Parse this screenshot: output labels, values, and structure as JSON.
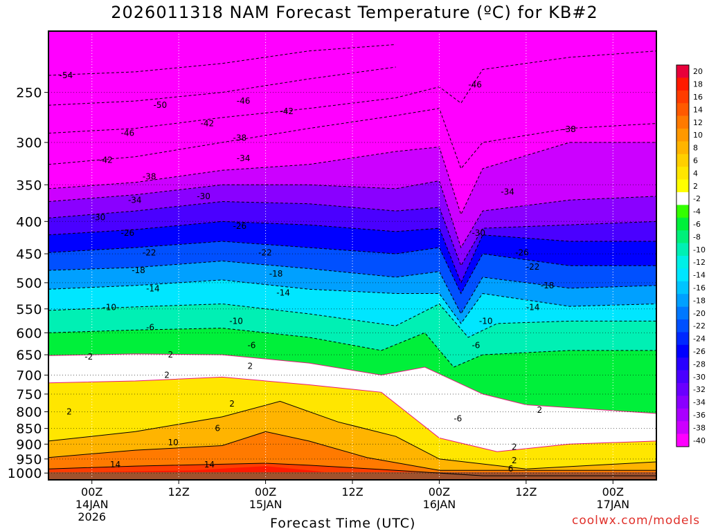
{
  "title": "2026011318 NAM Forecast Temperature (ºC) for KB#2",
  "watermark": "coolwx.com/models",
  "accent_color": "#e0302a",
  "chart_data": {
    "type": "heatmap",
    "title": "2026011318 NAM Forecast Temperature (ºC) for KB#2",
    "xlabel": "Forecast Time (UTC)",
    "ylabel": "",
    "grid": true,
    "x_unit": "hours since 2026-01-13 18Z",
    "xlim": [
      0,
      84
    ],
    "y_scale": "log-pressure",
    "ylim": [
      1025,
      200
    ],
    "x_ticks": [
      {
        "x": 6,
        "lines": [
          "00Z",
          "14JAN",
          "2026"
        ]
      },
      {
        "x": 18,
        "lines": [
          "12Z"
        ]
      },
      {
        "x": 30,
        "lines": [
          "00Z",
          "15JAN"
        ]
      },
      {
        "x": 42,
        "lines": [
          "12Z"
        ]
      },
      {
        "x": 54,
        "lines": [
          "00Z",
          "16JAN"
        ]
      },
      {
        "x": 66,
        "lines": [
          "12Z"
        ]
      },
      {
        "x": 78,
        "lines": [
          "00Z",
          "17JAN"
        ]
      }
    ],
    "y_ticks": [
      {
        "p": 250,
        "label": "250"
      },
      {
        "p": 300,
        "label": "300"
      },
      {
        "p": 350,
        "label": "350"
      },
      {
        "p": 400,
        "label": "400"
      },
      {
        "p": 450,
        "label": "450"
      },
      {
        "p": 500,
        "label": "500"
      },
      {
        "p": 550,
        "label": "550"
      },
      {
        "p": 600,
        "label": "600"
      },
      {
        "p": 650,
        "label": "650"
      },
      {
        "p": 700,
        "label": "700"
      },
      {
        "p": 750,
        "label": "750"
      },
      {
        "p": 800,
        "label": "800"
      },
      {
        "p": 850,
        "label": "850"
      },
      {
        "p": 900,
        "label": "900"
      },
      {
        "p": 950,
        "label": "950"
      },
      {
        "p": 1000,
        "label": "1000"
      }
    ],
    "colorbar": {
      "bins": [
        {
          "label": "20",
          "color": "#e8003a"
        },
        {
          "label": "18",
          "color": "#ff1a00"
        },
        {
          "label": "16",
          "color": "#ff3c00"
        },
        {
          "label": "14",
          "color": "#ff5a00"
        },
        {
          "label": "12",
          "color": "#ff7a00"
        },
        {
          "label": "10",
          "color": "#ff9800"
        },
        {
          "label": "8",
          "color": "#ffb400"
        },
        {
          "label": "6",
          "color": "#ffcf00"
        },
        {
          "label": "4",
          "color": "#ffe600"
        },
        {
          "label": "2",
          "color": "#ffff00"
        },
        {
          "label": "-2",
          "color": "#ffffff"
        },
        {
          "label": "-4",
          "color": "#33ff00"
        },
        {
          "label": "-6",
          "color": "#00f03a"
        },
        {
          "label": "-8",
          "color": "#00f07a"
        },
        {
          "label": "-10",
          "color": "#00f0b4"
        },
        {
          "label": "-12",
          "color": "#00f0e6"
        },
        {
          "label": "-14",
          "color": "#00e6ff"
        },
        {
          "label": "-16",
          "color": "#00c4ff"
        },
        {
          "label": "-18",
          "color": "#00a0ff"
        },
        {
          "label": "-20",
          "color": "#0078ff"
        },
        {
          "label": "-22",
          "color": "#0050ff"
        },
        {
          "label": "-24",
          "color": "#0028ff"
        },
        {
          "label": "-26",
          "color": "#0000ff"
        },
        {
          "label": "-28",
          "color": "#2800ff"
        },
        {
          "label": "-30",
          "color": "#4a00ff"
        },
        {
          "label": "-32",
          "color": "#6a00ff"
        },
        {
          "label": "-34",
          "color": "#8a00ff"
        },
        {
          "label": "-36",
          "color": "#aa00ff"
        },
        {
          "label": "-38",
          "color": "#cc00ff"
        },
        {
          "label": "-40",
          "color": "#ff00ff"
        }
      ],
      "ground_color": "#a0522d"
    },
    "series": [
      {
        "value": 14,
        "points": [
          [
            0,
            985
          ],
          [
            12,
            975
          ],
          [
            30,
            965
          ],
          [
            36,
            972
          ],
          [
            48,
            990
          ],
          [
            60,
            1010
          ],
          [
            84,
            1010
          ]
        ]
      },
      {
        "value": 10,
        "points": [
          [
            0,
            945
          ],
          [
            12,
            920
          ],
          [
            24,
            905
          ],
          [
            30,
            860
          ],
          [
            36,
            890
          ],
          [
            44,
            945
          ],
          [
            54,
            990
          ],
          [
            84,
            990
          ]
        ]
      },
      {
        "value": 6,
        "points": [
          [
            0,
            890
          ],
          [
            12,
            860
          ],
          [
            24,
            815
          ],
          [
            32,
            770
          ],
          [
            40,
            830
          ],
          [
            48,
            875
          ],
          [
            54,
            950
          ],
          [
            66,
            985
          ],
          [
            84,
            960
          ]
        ]
      },
      {
        "value": 2,
        "points": [
          [
            0,
            720
          ],
          [
            12,
            715
          ],
          [
            24,
            705
          ],
          [
            36,
            725
          ],
          [
            46,
            745
          ],
          [
            54,
            880
          ],
          [
            62,
            925
          ],
          [
            72,
            900
          ],
          [
            84,
            890
          ]
        ]
      },
      {
        "value": -2,
        "points": [
          [
            0,
            652
          ],
          [
            12,
            648
          ],
          [
            24,
            650
          ],
          [
            36,
            670
          ],
          [
            46,
            700
          ],
          [
            52,
            680
          ],
          [
            60,
            750
          ],
          [
            66,
            780
          ],
          [
            84,
            805
          ]
        ]
      },
      {
        "value": -6,
        "points": [
          [
            0,
            600
          ],
          [
            12,
            594
          ],
          [
            24,
            590
          ],
          [
            36,
            610
          ],
          [
            46,
            640
          ],
          [
            52,
            600
          ],
          [
            56,
            680
          ],
          [
            60,
            650
          ],
          [
            72,
            640
          ],
          [
            84,
            640
          ]
        ]
      },
      {
        "value": -10,
        "points": [
          [
            0,
            553
          ],
          [
            12,
            546
          ],
          [
            24,
            540
          ],
          [
            36,
            560
          ],
          [
            48,
            585
          ],
          [
            54,
            540
          ],
          [
            58,
            610
          ],
          [
            62,
            580
          ],
          [
            72,
            575
          ],
          [
            84,
            575
          ]
        ]
      },
      {
        "value": -14,
        "points": [
          [
            0,
            512
          ],
          [
            12,
            505
          ],
          [
            24,
            495
          ],
          [
            36,
            512
          ],
          [
            48,
            520
          ],
          [
            54,
            520
          ],
          [
            57,
            580
          ],
          [
            60,
            520
          ],
          [
            72,
            545
          ],
          [
            84,
            540
          ]
        ]
      },
      {
        "value": -18,
        "points": [
          [
            0,
            478
          ],
          [
            12,
            473
          ],
          [
            24,
            462
          ],
          [
            36,
            475
          ],
          [
            48,
            490
          ],
          [
            54,
            480
          ],
          [
            57,
            560
          ],
          [
            60,
            490
          ],
          [
            72,
            510
          ],
          [
            84,
            505
          ]
        ]
      },
      {
        "value": -22,
        "points": [
          [
            0,
            448
          ],
          [
            12,
            440
          ],
          [
            24,
            430
          ],
          [
            36,
            440
          ],
          [
            48,
            450
          ],
          [
            54,
            440
          ],
          [
            57,
            520
          ],
          [
            60,
            450
          ],
          [
            72,
            470
          ],
          [
            84,
            470
          ]
        ]
      },
      {
        "value": -26,
        "points": [
          [
            0,
            420
          ],
          [
            12,
            412
          ],
          [
            24,
            400
          ],
          [
            36,
            405
          ],
          [
            48,
            415
          ],
          [
            54,
            410
          ],
          [
            57,
            500
          ],
          [
            60,
            420
          ],
          [
            72,
            430
          ],
          [
            84,
            430
          ]
        ]
      },
      {
        "value": -30,
        "points": [
          [
            0,
            395
          ],
          [
            12,
            385
          ],
          [
            24,
            372
          ],
          [
            36,
            375
          ],
          [
            48,
            385
          ],
          [
            54,
            380
          ],
          [
            57,
            470
          ],
          [
            60,
            410
          ],
          [
            72,
            405
          ],
          [
            84,
            400
          ]
        ]
      },
      {
        "value": -34,
        "points": [
          [
            0,
            372
          ],
          [
            12,
            363
          ],
          [
            24,
            350
          ],
          [
            36,
            350
          ],
          [
            48,
            355
          ],
          [
            54,
            345
          ],
          [
            57,
            440
          ],
          [
            60,
            385
          ],
          [
            72,
            370
          ],
          [
            84,
            365
          ]
        ]
      },
      {
        "value": -38,
        "points": [
          [
            0,
            355
          ],
          [
            12,
            347
          ],
          [
            24,
            332
          ],
          [
            36,
            325
          ],
          [
            48,
            310
          ],
          [
            54,
            305
          ],
          [
            57,
            390
          ],
          [
            60,
            330
          ],
          [
            72,
            300
          ],
          [
            84,
            300
          ]
        ]
      },
      {
        "value": -42,
        "points": [
          [
            0,
            325
          ],
          [
            12,
            316
          ],
          [
            24,
            300
          ],
          [
            36,
            285
          ],
          [
            48,
            272
          ],
          [
            54,
            265
          ],
          [
            57,
            330
          ],
          [
            60,
            300
          ],
          [
            72,
            285
          ],
          [
            84,
            280
          ]
        ]
      },
      {
        "value": -46,
        "points": [
          [
            0,
            290
          ],
          [
            12,
            285
          ],
          [
            24,
            274
          ],
          [
            36,
            265
          ],
          [
            48,
            255
          ],
          [
            54,
            245
          ],
          [
            57,
            260
          ],
          [
            60,
            230
          ],
          [
            72,
            220
          ],
          [
            84,
            215
          ]
        ]
      },
      {
        "value": -50,
        "points": [
          [
            0,
            262
          ],
          [
            12,
            258
          ],
          [
            24,
            250
          ],
          [
            36,
            238
          ],
          [
            48,
            228
          ]
        ]
      },
      {
        "value": -54,
        "points": [
          [
            0,
            235
          ],
          [
            12,
            232
          ],
          [
            24,
            225
          ],
          [
            36,
            215
          ],
          [
            48,
            210
          ]
        ]
      }
    ],
    "contour_labels": [
      {
        "text": "-54",
        "x": 1.5,
        "p": 235
      },
      {
        "text": "-50",
        "x": 14.5,
        "p": 262
      },
      {
        "text": "-46",
        "x": 10,
        "p": 290
      },
      {
        "text": "-46",
        "x": 26,
        "p": 258
      },
      {
        "text": "-46",
        "x": 58,
        "p": 243
      },
      {
        "text": "-42",
        "x": 7,
        "p": 320
      },
      {
        "text": "-42",
        "x": 21,
        "p": 280
      },
      {
        "text": "-42",
        "x": 32,
        "p": 268
      },
      {
        "text": "-38",
        "x": 13,
        "p": 340
      },
      {
        "text": "-38",
        "x": 25.5,
        "p": 295
      },
      {
        "text": "-38",
        "x": 71,
        "p": 286
      },
      {
        "text": "-34",
        "x": 11,
        "p": 370
      },
      {
        "text": "-34",
        "x": 26,
        "p": 318
      },
      {
        "text": "-34",
        "x": 62.5,
        "p": 359
      },
      {
        "text": "-30",
        "x": 6,
        "p": 394
      },
      {
        "text": "-30",
        "x": 20.5,
        "p": 365
      },
      {
        "text": "-30",
        "x": 58.5,
        "p": 417
      },
      {
        "text": "-26",
        "x": 10,
        "p": 417
      },
      {
        "text": "-26",
        "x": 25.5,
        "p": 407
      },
      {
        "text": "-26",
        "x": 64.5,
        "p": 448
      },
      {
        "text": "-22",
        "x": 13,
        "p": 448
      },
      {
        "text": "-22",
        "x": 29,
        "p": 448
      },
      {
        "text": "-22",
        "x": 66,
        "p": 472
      },
      {
        "text": "-18",
        "x": 11.5,
        "p": 478
      },
      {
        "text": "-18",
        "x": 30.5,
        "p": 484
      },
      {
        "text": "-18",
        "x": 68,
        "p": 505
      },
      {
        "text": "-14",
        "x": 13.5,
        "p": 511
      },
      {
        "text": "-14",
        "x": 31.5,
        "p": 519
      },
      {
        "text": "-14",
        "x": 66,
        "p": 547
      },
      {
        "text": "-10",
        "x": 7.5,
        "p": 547
      },
      {
        "text": "-10",
        "x": 25,
        "p": 575
      },
      {
        "text": "-10",
        "x": 59.5,
        "p": 575
      },
      {
        "text": "-6",
        "x": 13.5,
        "p": 588
      },
      {
        "text": "-6",
        "x": 27.5,
        "p": 628
      },
      {
        "text": "-6",
        "x": 58.5,
        "p": 628
      },
      {
        "text": "-6",
        "x": 56,
        "p": 820
      },
      {
        "text": "-2",
        "x": 5,
        "p": 655
      },
      {
        "text": "2",
        "x": 16.5,
        "p": 650
      },
      {
        "text": "2",
        "x": 27.5,
        "p": 677
      },
      {
        "text": "2",
        "x": 2.5,
        "p": 800
      },
      {
        "text": "2",
        "x": 16,
        "p": 700
      },
      {
        "text": "2",
        "x": 25,
        "p": 777
      },
      {
        "text": "2",
        "x": 67.5,
        "p": 795
      },
      {
        "text": "2",
        "x": 64,
        "p": 910
      },
      {
        "text": "2",
        "x": 64,
        "p": 955
      },
      {
        "text": "6",
        "x": 23,
        "p": 850
      },
      {
        "text": "6",
        "x": 63.5,
        "p": 985
      },
      {
        "text": "10",
        "x": 16.5,
        "p": 895
      },
      {
        "text": "14",
        "x": 8.5,
        "p": 970
      },
      {
        "text": "14",
        "x": 21.5,
        "p": 970
      }
    ]
  }
}
